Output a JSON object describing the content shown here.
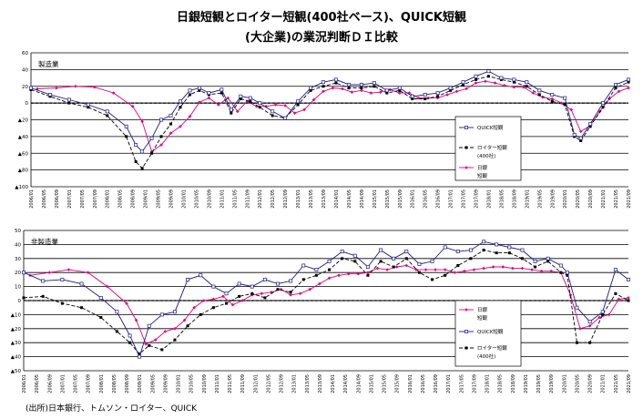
{
  "title_line1": "日銀短観とロイター短観(400社ベース)、QUICK短観",
  "title_line2": "(大企業)の業況判断ＤＩ比較",
  "source": "(出所)日本銀行、トムソン・ロイター、QUICK",
  "colors": {
    "quick": "#1a1a8c",
    "reuters": "#000000",
    "tankan": "#e0007f",
    "grid": "#000000"
  },
  "chart_data": [
    {
      "type": "line",
      "panel_label": "製造業",
      "ylim": [
        -100,
        60
      ],
      "yticks": [
        60,
        40,
        20,
        0,
        -20,
        -40,
        -60,
        -80,
        -100
      ],
      "ytick_labels": [
        "60",
        "40",
        "20",
        "0",
        "▲20",
        "▲40",
        "▲60",
        "▲80",
        "▲100"
      ],
      "x_range": [
        "2006/01",
        "2021/09"
      ],
      "xtick_labels": [
        "2006/01",
        "2006/05",
        "2006/09",
        "2007/01",
        "2007/05",
        "2007/09",
        "2008/01",
        "2008/05",
        "2008/09",
        "2009/01",
        "2009/05",
        "2009/09",
        "2010/01",
        "2010/05",
        "2010/09",
        "2011/01",
        "2011/05",
        "2011/09",
        "2012/01",
        "2012/05",
        "2012/09",
        "2013/01",
        "2013/05",
        "2013/09",
        "2014/01",
        "2014/05",
        "2014/09",
        "2015/01",
        "2015/05",
        "2015/09",
        "2016/01",
        "2016/05",
        "2016/09",
        "2017/01",
        "2017/05",
        "2017/09",
        "2018/01",
        "2018/05",
        "2018/09",
        "2019/01",
        "2019/05",
        "2019/09",
        "2020/01",
        "2020/05",
        "2020/09",
        "2021/01",
        "2021/05",
        "2021/09"
      ],
      "legend": [
        "QUICK短観",
        "ロイター短観",
        "(400社)",
        "日銀",
        "短観"
      ],
      "series": [
        {
          "name": "QUICK短観",
          "key": "quick",
          "x": [
            "2006/01",
            "2006/07",
            "2007/01",
            "2007/07",
            "2008/01",
            "2008/07",
            "2008/10",
            "2008/12",
            "2009/03",
            "2009/06",
            "2009/09",
            "2009/12",
            "2010/03",
            "2010/06",
            "2010/09",
            "2011/01",
            "2011/04",
            "2011/07",
            "2011/10",
            "2012/01",
            "2012/05",
            "2012/09",
            "2013/01",
            "2013/05",
            "2013/09",
            "2014/01",
            "2014/05",
            "2014/09",
            "2015/01",
            "2015/05",
            "2015/09",
            "2016/01",
            "2016/05",
            "2016/09",
            "2017/01",
            "2017/05",
            "2017/09",
            "2018/01",
            "2018/05",
            "2018/09",
            "2019/01",
            "2019/05",
            "2019/09",
            "2020/01",
            "2020/04",
            "2020/06",
            "2020/09",
            "2021/01",
            "2021/05",
            "2021/09"
          ],
          "y": [
            18,
            10,
            4,
            -2,
            -10,
            -28,
            -50,
            -58,
            -42,
            -20,
            -15,
            2,
            15,
            18,
            12,
            16,
            -8,
            8,
            6,
            0,
            -10,
            -18,
            2,
            18,
            25,
            28,
            22,
            22,
            24,
            15,
            18,
            8,
            10,
            12,
            18,
            25,
            32,
            38,
            30,
            28,
            25,
            15,
            10,
            6,
            -38,
            -42,
            -25,
            0,
            22,
            28
          ]
        },
        {
          "name": "ロイター短観",
          "key": "reuters",
          "x": [
            "2006/01",
            "2006/07",
            "2007/01",
            "2007/07",
            "2008/01",
            "2008/07",
            "2008/10",
            "2008/12",
            "2009/03",
            "2009/06",
            "2009/09",
            "2009/12",
            "2010/03",
            "2010/06",
            "2010/09",
            "2011/01",
            "2011/04",
            "2011/07",
            "2011/10",
            "2012/01",
            "2012/05",
            "2012/09",
            "2013/01",
            "2013/05",
            "2013/09",
            "2014/01",
            "2014/05",
            "2014/09",
            "2015/01",
            "2015/05",
            "2015/09",
            "2016/01",
            "2016/05",
            "2016/09",
            "2017/01",
            "2017/05",
            "2017/09",
            "2018/01",
            "2018/05",
            "2018/09",
            "2019/01",
            "2019/05",
            "2019/09",
            "2020/01",
            "2020/04",
            "2020/06",
            "2020/09",
            "2021/01",
            "2021/05",
            "2021/09"
          ],
          "y": [
            16,
            8,
            0,
            -5,
            -15,
            -40,
            -70,
            -78,
            -60,
            -40,
            -25,
            -5,
            10,
            15,
            10,
            12,
            -12,
            5,
            2,
            -5,
            -15,
            -18,
            -2,
            15,
            20,
            24,
            18,
            18,
            20,
            12,
            15,
            5,
            5,
            8,
            15,
            22,
            28,
            32,
            28,
            25,
            20,
            10,
            2,
            -2,
            -40,
            -45,
            -28,
            -5,
            18,
            25
          ]
        },
        {
          "name": "日銀短観",
          "key": "tankan",
          "x": [
            "2006/03",
            "2006/09",
            "2007/03",
            "2007/09",
            "2008/03",
            "2008/09",
            "2008/12",
            "2009/03",
            "2009/06",
            "2009/09",
            "2009/12",
            "2010/03",
            "2010/06",
            "2010/09",
            "2010/12",
            "2011/03",
            "2011/06",
            "2011/09",
            "2011/12",
            "2012/03",
            "2012/06",
            "2012/09",
            "2012/12",
            "2013/03",
            "2013/06",
            "2013/09",
            "2013/12",
            "2014/03",
            "2014/06",
            "2014/09",
            "2014/12",
            "2015/03",
            "2015/06",
            "2015/09",
            "2015/12",
            "2016/03",
            "2016/06",
            "2016/09",
            "2016/12",
            "2017/03",
            "2017/06",
            "2017/09",
            "2017/12",
            "2018/03",
            "2018/06",
            "2018/09",
            "2018/12",
            "2019/03",
            "2019/06",
            "2019/09",
            "2019/12",
            "2020/03",
            "2020/06",
            "2020/09",
            "2020/12",
            "2021/03",
            "2021/06",
            "2021/09"
          ],
          "y": [
            17,
            18,
            20,
            19,
            12,
            -4,
            -22,
            -58,
            -50,
            -36,
            -28,
            -16,
            1,
            6,
            -2,
            6,
            -10,
            2,
            -4,
            -4,
            -2,
            -3,
            -12,
            -8,
            4,
            14,
            18,
            17,
            13,
            15,
            12,
            13,
            16,
            12,
            12,
            6,
            6,
            6,
            10,
            14,
            17,
            24,
            26,
            24,
            21,
            19,
            19,
            12,
            7,
            5,
            0,
            -8,
            -34,
            -27,
            -10,
            5,
            14,
            18
          ]
        }
      ]
    },
    {
      "type": "line",
      "panel_label": "非製造業",
      "ylim": [
        -50,
        50
      ],
      "yticks": [
        50,
        40,
        30,
        20,
        10,
        0,
        -10,
        -20,
        -30,
        -40,
        -50
      ],
      "ytick_labels": [
        "50",
        "40",
        "30",
        "20",
        "10",
        "0",
        "▲10",
        "▲20",
        "▲30",
        "▲40",
        "▲50"
      ],
      "x_range": [
        "2006/01",
        "2021/09"
      ],
      "xtick_labels": [
        "2006/01",
        "2006/05",
        "2006/09",
        "2007/01",
        "2007/05",
        "2007/09",
        "2008/01",
        "2008/05",
        "2008/09",
        "2009/01",
        "2009/05",
        "2009/09",
        "2010/01",
        "2010/05",
        "2010/09",
        "2011/01",
        "2011/05",
        "2011/09",
        "2012/01",
        "2012/05",
        "2012/09",
        "2013/01",
        "2013/05",
        "2013/09",
        "2014/01",
        "2014/05",
        "2014/09",
        "2015/01",
        "2015/05",
        "2015/09",
        "2016/01",
        "2016/05",
        "2016/09",
        "2017/01",
        "2017/05",
        "2017/09",
        "2018/01",
        "2018/05",
        "2018/09",
        "2019/01",
        "2019/05",
        "2019/09",
        "2020/01",
        "2020/05",
        "2020/09",
        "2021/01",
        "2021/05",
        "2021/09"
      ],
      "legend": [
        "日銀",
        "短観",
        "QUICK短観",
        "ロイター短観",
        "(400社)"
      ],
      "series": [
        {
          "name": "QUICK短観",
          "key": "quick",
          "x": [
            "2006/01",
            "2006/07",
            "2007/01",
            "2007/07",
            "2008/01",
            "2008/06",
            "2008/10",
            "2009/01",
            "2009/04",
            "2009/08",
            "2009/12",
            "2010/04",
            "2010/08",
            "2010/12",
            "2011/04",
            "2011/08",
            "2011/12",
            "2012/04",
            "2012/08",
            "2012/12",
            "2013/04",
            "2013/08",
            "2013/12",
            "2014/04",
            "2014/08",
            "2014/12",
            "2015/04",
            "2015/08",
            "2015/12",
            "2016/04",
            "2016/08",
            "2016/12",
            "2017/04",
            "2017/08",
            "2017/12",
            "2018/04",
            "2018/08",
            "2018/12",
            "2019/04",
            "2019/08",
            "2019/12",
            "2020/02",
            "2020/05",
            "2020/09",
            "2021/01",
            "2021/05",
            "2021/09"
          ],
          "y": [
            20,
            14,
            15,
            12,
            2,
            -8,
            -25,
            -40,
            -18,
            -10,
            -8,
            15,
            18,
            10,
            5,
            12,
            10,
            15,
            12,
            14,
            25,
            22,
            28,
            35,
            32,
            24,
            36,
            30,
            35,
            26,
            28,
            38,
            35,
            36,
            42,
            40,
            38,
            36,
            28,
            30,
            25,
            20,
            -5,
            -15,
            -8,
            22,
            15
          ]
        },
        {
          "name": "ロイター短観",
          "key": "reuters",
          "x": [
            "2006/01",
            "2006/07",
            "2007/01",
            "2007/07",
            "2008/01",
            "2008/06",
            "2008/10",
            "2009/01",
            "2009/04",
            "2009/08",
            "2009/12",
            "2010/04",
            "2010/08",
            "2010/12",
            "2011/04",
            "2011/08",
            "2011/12",
            "2012/04",
            "2012/08",
            "2012/12",
            "2013/04",
            "2013/08",
            "2013/12",
            "2014/04",
            "2014/08",
            "2014/12",
            "2015/04",
            "2015/08",
            "2015/12",
            "2016/04",
            "2016/08",
            "2016/12",
            "2017/04",
            "2017/08",
            "2017/12",
            "2018/04",
            "2018/08",
            "2018/12",
            "2019/04",
            "2019/08",
            "2019/12",
            "2020/02",
            "2020/05",
            "2020/09",
            "2021/01",
            "2021/05",
            "2021/09"
          ],
          "y": [
            2,
            3,
            -2,
            -5,
            -12,
            -22,
            -30,
            -38,
            -32,
            -35,
            -28,
            -18,
            -10,
            -5,
            -2,
            3,
            5,
            2,
            8,
            6,
            15,
            18,
            22,
            30,
            28,
            18,
            28,
            24,
            30,
            20,
            15,
            18,
            25,
            30,
            36,
            34,
            34,
            30,
            24,
            28,
            20,
            18,
            -30,
            -30,
            -10,
            5,
            0
          ]
        },
        {
          "name": "日銀短観",
          "key": "tankan",
          "x": [
            "2006/03",
            "2006/09",
            "2007/03",
            "2007/09",
            "2008/03",
            "2008/09",
            "2008/12",
            "2009/03",
            "2009/06",
            "2009/09",
            "2009/12",
            "2010/03",
            "2010/06",
            "2010/09",
            "2010/12",
            "2011/03",
            "2011/06",
            "2011/09",
            "2011/12",
            "2012/03",
            "2012/06",
            "2012/09",
            "2012/12",
            "2013/03",
            "2013/06",
            "2013/09",
            "2013/12",
            "2014/03",
            "2014/06",
            "2014/09",
            "2014/12",
            "2015/03",
            "2015/06",
            "2015/09",
            "2015/12",
            "2016/03",
            "2016/06",
            "2016/09",
            "2016/12",
            "2017/03",
            "2017/06",
            "2017/09",
            "2017/12",
            "2018/03",
            "2018/06",
            "2018/09",
            "2018/12",
            "2019/03",
            "2019/06",
            "2019/09",
            "2019/12",
            "2020/03",
            "2020/06",
            "2020/09",
            "2020/12",
            "2021/03",
            "2021/06",
            "2021/09"
          ],
          "y": [
            18,
            20,
            22,
            20,
            10,
            -2,
            -14,
            -31,
            -28,
            -22,
            -20,
            -14,
            -5,
            0,
            1,
            3,
            -3,
            0,
            4,
            5,
            6,
            8,
            4,
            5,
            8,
            12,
            16,
            18,
            19,
            19,
            20,
            23,
            22,
            24,
            25,
            22,
            22,
            22,
            22,
            20,
            21,
            22,
            23,
            24,
            24,
            23,
            23,
            22,
            21,
            21,
            20,
            4,
            -20,
            -18,
            -12,
            -10,
            1,
            2
          ]
        }
      ]
    }
  ]
}
